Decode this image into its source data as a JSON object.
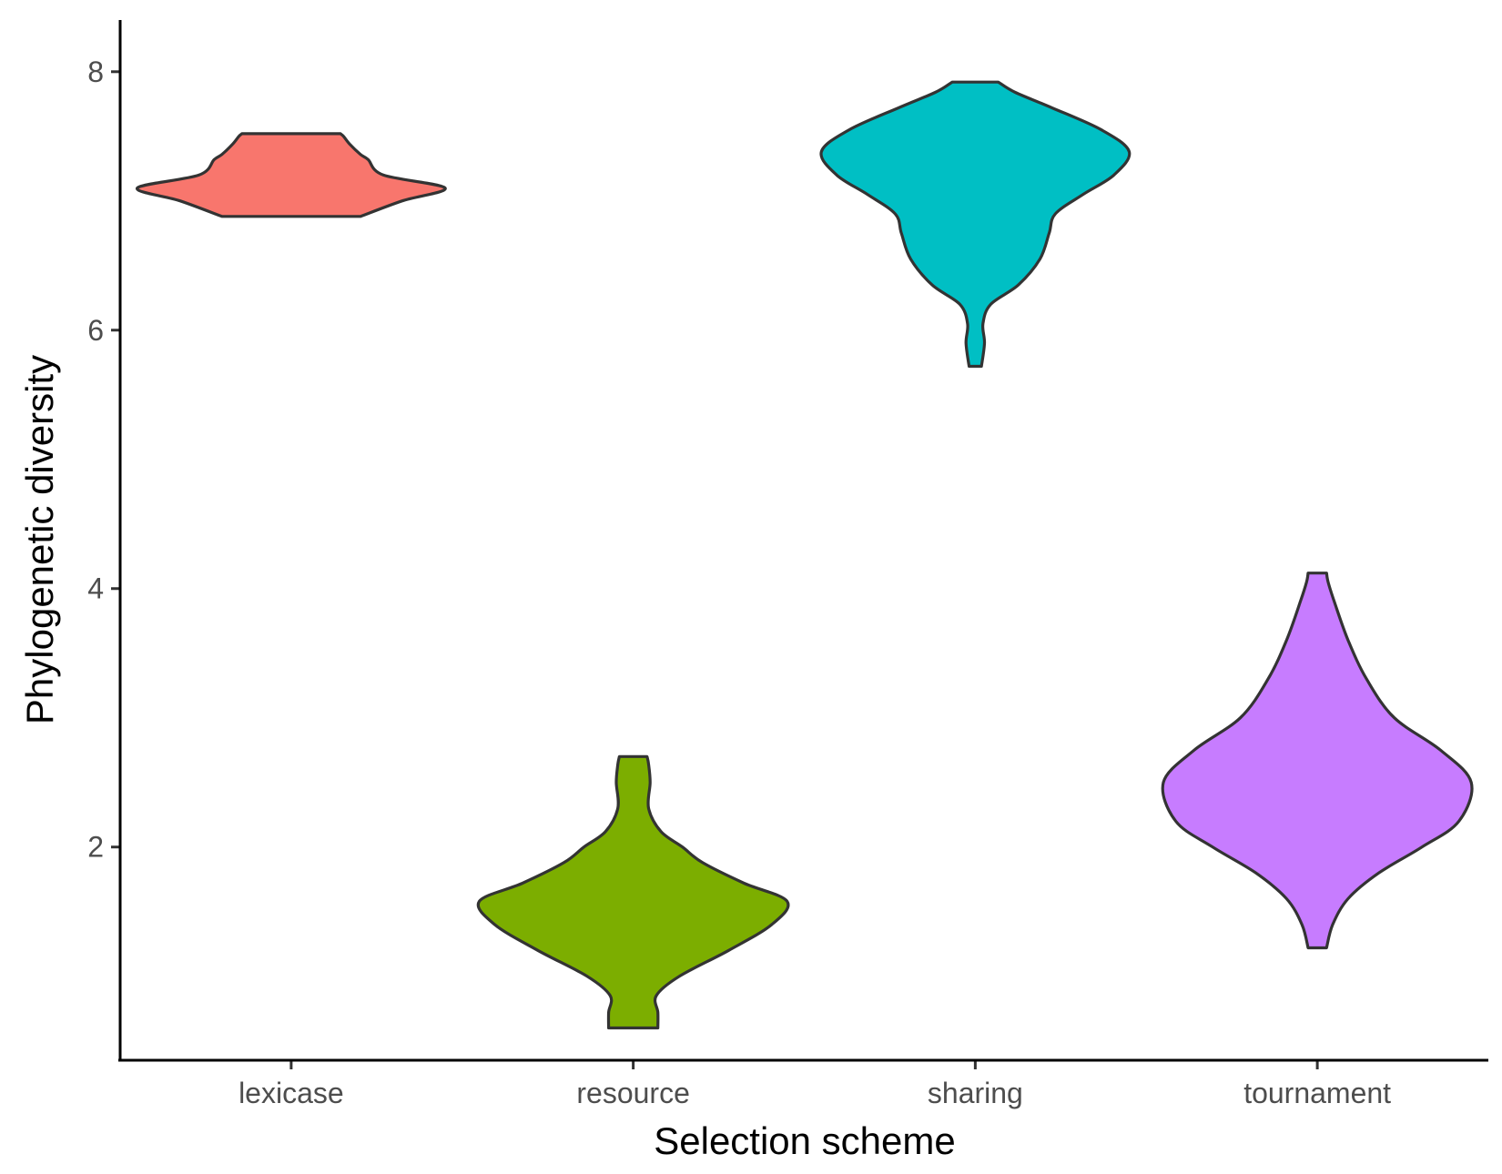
{
  "chart_data": {
    "type": "violin",
    "xlabel": "Selection scheme",
    "ylabel": "Phylogenetic diversity",
    "categories": [
      "lexicase",
      "resource",
      "sharing",
      "tournament"
    ],
    "ylim": [
      0.35,
      8.4
    ],
    "yticks": [
      2,
      4,
      6,
      8
    ],
    "grid": false,
    "legend": "none",
    "series": [
      {
        "category": "lexicase",
        "color": "#F8766D",
        "min": 6.88,
        "max": 7.52,
        "density": [
          [
            6.88,
            0.45
          ],
          [
            7.0,
            0.72
          ],
          [
            7.1,
            1.0
          ],
          [
            7.2,
            0.6
          ],
          [
            7.32,
            0.5
          ],
          [
            7.36,
            0.45
          ],
          [
            7.44,
            0.38
          ],
          [
            7.5,
            0.34
          ],
          [
            7.52,
            0.32
          ]
        ]
      },
      {
        "category": "resource",
        "color": "#7CAE00",
        "min": 0.6,
        "max": 2.7,
        "density": [
          [
            0.6,
            0.16
          ],
          [
            0.72,
            0.16
          ],
          [
            0.85,
            0.15
          ],
          [
            1.0,
            0.3
          ],
          [
            1.2,
            0.62
          ],
          [
            1.4,
            0.9
          ],
          [
            1.58,
            1.0
          ],
          [
            1.72,
            0.72
          ],
          [
            1.88,
            0.45
          ],
          [
            2.0,
            0.32
          ],
          [
            2.12,
            0.18
          ],
          [
            2.3,
            0.1
          ],
          [
            2.5,
            0.11
          ],
          [
            2.64,
            0.1
          ],
          [
            2.7,
            0.09
          ]
        ]
      },
      {
        "category": "sharing",
        "color": "#00BFC4",
        "min": 5.72,
        "max": 7.92,
        "density": [
          [
            5.72,
            0.04
          ],
          [
            5.9,
            0.06
          ],
          [
            6.05,
            0.05
          ],
          [
            6.2,
            0.1
          ],
          [
            6.35,
            0.28
          ],
          [
            6.55,
            0.42
          ],
          [
            6.75,
            0.48
          ],
          [
            6.9,
            0.52
          ],
          [
            7.05,
            0.7
          ],
          [
            7.2,
            0.9
          ],
          [
            7.38,
            1.0
          ],
          [
            7.55,
            0.82
          ],
          [
            7.72,
            0.5
          ],
          [
            7.84,
            0.26
          ],
          [
            7.92,
            0.15
          ]
        ]
      },
      {
        "category": "tournament",
        "color": "#C77CFF",
        "min": 1.22,
        "max": 4.12,
        "density": [
          [
            1.22,
            0.06
          ],
          [
            1.4,
            0.1
          ],
          [
            1.6,
            0.2
          ],
          [
            1.8,
            0.4
          ],
          [
            2.0,
            0.68
          ],
          [
            2.2,
            0.92
          ],
          [
            2.5,
            1.0
          ],
          [
            2.75,
            0.8
          ],
          [
            3.0,
            0.5
          ],
          [
            3.3,
            0.32
          ],
          [
            3.6,
            0.2
          ],
          [
            3.9,
            0.11
          ],
          [
            4.05,
            0.07
          ],
          [
            4.12,
            0.06
          ]
        ]
      }
    ]
  }
}
